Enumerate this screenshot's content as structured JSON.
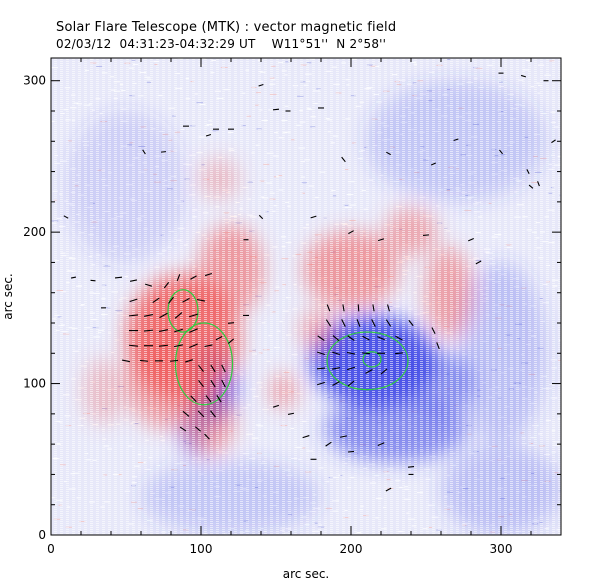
{
  "header": {
    "title": "Solar Flare Telescope (MTK) : vector magnetic field",
    "subtitle": "02/03/12  04:31:23-04:32:29 UT    W11°51''  N 2°58''"
  },
  "chart_data": {
    "type": "heatmap",
    "title": "Solar Flare Telescope (MTK) : vector magnetic field",
    "subtitle": "02/03/12  04:31:23-04:32:29 UT    W11°51''  N 2°58''",
    "xlabel": "arc sec.",
    "ylabel": "arc sec.",
    "xlim": [
      0,
      340
    ],
    "ylim": [
      0,
      315
    ],
    "x_ticks": [
      0,
      100,
      200,
      300
    ],
    "y_ticks": [
      0,
      100,
      200,
      300
    ],
    "colors": {
      "positive_polarity": "#f05a5a",
      "negative_polarity": "#3d46e6",
      "background": "#ffffff",
      "contour": "#2ecc40",
      "arrow": "#000000"
    },
    "positive_regions": [
      {
        "cx": 88,
        "cy": 130,
        "rx": 38,
        "ry": 42,
        "strength": 0.85
      },
      {
        "cx": 120,
        "cy": 175,
        "rx": 22,
        "ry": 30,
        "strength": 0.55
      },
      {
        "cx": 75,
        "cy": 100,
        "rx": 25,
        "ry": 30,
        "strength": 0.5
      },
      {
        "cx": 105,
        "cy": 75,
        "rx": 18,
        "ry": 22,
        "strength": 0.5
      },
      {
        "cx": 200,
        "cy": 175,
        "rx": 32,
        "ry": 26,
        "strength": 0.55
      },
      {
        "cx": 265,
        "cy": 160,
        "rx": 16,
        "ry": 30,
        "strength": 0.5
      },
      {
        "cx": 240,
        "cy": 200,
        "rx": 18,
        "ry": 16,
        "strength": 0.45
      },
      {
        "cx": 155,
        "cy": 95,
        "rx": 10,
        "ry": 12,
        "strength": 0.45
      },
      {
        "cx": 178,
        "cy": 135,
        "rx": 12,
        "ry": 14,
        "strength": 0.45
      },
      {
        "cx": 112,
        "cy": 235,
        "rx": 14,
        "ry": 14,
        "strength": 0.3
      },
      {
        "cx": 35,
        "cy": 95,
        "rx": 14,
        "ry": 22,
        "strength": 0.3
      }
    ],
    "negative_regions": [
      {
        "cx": 215,
        "cy": 115,
        "rx": 42,
        "ry": 30,
        "strength": 0.9
      },
      {
        "cx": 108,
        "cy": 100,
        "rx": 16,
        "ry": 26,
        "strength": 0.85
      },
      {
        "cx": 230,
        "cy": 70,
        "rx": 48,
        "ry": 22,
        "strength": 0.55
      },
      {
        "cx": 260,
        "cy": 100,
        "rx": 22,
        "ry": 20,
        "strength": 0.5
      },
      {
        "cx": 95,
        "cy": 68,
        "rx": 10,
        "ry": 16,
        "strength": 0.5
      },
      {
        "cx": 300,
        "cy": 120,
        "rx": 30,
        "ry": 60,
        "strength": 0.25
      },
      {
        "cx": 120,
        "cy": 25,
        "rx": 60,
        "ry": 25,
        "strength": 0.2
      },
      {
        "cx": 300,
        "cy": 30,
        "rx": 40,
        "ry": 30,
        "strength": 0.25
      },
      {
        "cx": 270,
        "cy": 260,
        "rx": 60,
        "ry": 40,
        "strength": 0.2
      },
      {
        "cx": 50,
        "cy": 230,
        "rx": 40,
        "ry": 50,
        "strength": 0.15
      }
    ],
    "contours": [
      {
        "cx": 88,
        "cy": 148,
        "rx": 10,
        "ry": 14
      },
      {
        "cx": 102,
        "cy": 113,
        "rx": 19,
        "ry": 27
      },
      {
        "cx": 211,
        "cy": 115,
        "rx": 27,
        "ry": 19
      },
      {
        "cx": 214,
        "cy": 116,
        "rx": 6,
        "ry": 5
      }
    ],
    "vectors": [
      [
        45,
        170,
        0.1,
        7
      ],
      [
        55,
        168,
        0.2,
        7
      ],
      [
        65,
        165,
        -0.3,
        7
      ],
      [
        77,
        165,
        0.9,
        7
      ],
      [
        85,
        170,
        1.2,
        7
      ],
      [
        95,
        170,
        0.5,
        7
      ],
      [
        105,
        172,
        0.3,
        7
      ],
      [
        55,
        155,
        0.3,
        8
      ],
      [
        70,
        155,
        0.6,
        8
      ],
      [
        80,
        155,
        0.9,
        8
      ],
      [
        90,
        155,
        0.5,
        8
      ],
      [
        100,
        155,
        -0.2,
        8
      ],
      [
        55,
        145,
        0.1,
        9
      ],
      [
        65,
        145,
        0.2,
        9
      ],
      [
        75,
        145,
        0.5,
        9
      ],
      [
        85,
        145,
        0.7,
        9
      ],
      [
        95,
        145,
        0.3,
        9
      ],
      [
        55,
        135,
        0.0,
        9
      ],
      [
        65,
        135,
        0.1,
        9
      ],
      [
        75,
        135,
        0.2,
        9
      ],
      [
        85,
        135,
        0.3,
        9
      ],
      [
        95,
        135,
        0.4,
        9
      ],
      [
        55,
        125,
        -0.1,
        9
      ],
      [
        65,
        125,
        0.0,
        9
      ],
      [
        75,
        125,
        0.1,
        9
      ],
      [
        85,
        125,
        0.2,
        9
      ],
      [
        95,
        125,
        0.4,
        9
      ],
      [
        50,
        115,
        -0.2,
        8
      ],
      [
        62,
        115,
        -0.1,
        8
      ],
      [
        72,
        115,
        0.0,
        8
      ],
      [
        82,
        115,
        0.1,
        8
      ],
      [
        92,
        115,
        0.3,
        8
      ],
      [
        105,
        125,
        0.2,
        8
      ],
      [
        112,
        130,
        0.5,
        7
      ],
      [
        120,
        128,
        0.7,
        7
      ],
      [
        100,
        110,
        -0.9,
        8
      ],
      [
        108,
        110,
        -1.0,
        8
      ],
      [
        115,
        110,
        -1.1,
        8
      ],
      [
        100,
        100,
        -0.9,
        8
      ],
      [
        108,
        100,
        -1.0,
        8
      ],
      [
        115,
        100,
        -1.1,
        8
      ],
      [
        95,
        90,
        -0.8,
        8
      ],
      [
        105,
        90,
        -0.9,
        8
      ],
      [
        112,
        90,
        -1.0,
        8
      ],
      [
        90,
        80,
        -0.7,
        8
      ],
      [
        100,
        80,
        -0.8,
        8
      ],
      [
        108,
        80,
        -0.9,
        8
      ],
      [
        88,
        70,
        -0.6,
        7
      ],
      [
        98,
        70,
        -0.7,
        7
      ],
      [
        104,
        65,
        -0.8,
        7
      ],
      [
        120,
        140,
        0.1,
        6
      ],
      [
        130,
        145,
        0.0,
        6
      ],
      [
        185,
        150,
        -1.2,
        7
      ],
      [
        195,
        150,
        -1.4,
        7
      ],
      [
        205,
        150,
        -1.5,
        7
      ],
      [
        215,
        150,
        -1.4,
        7
      ],
      [
        225,
        150,
        -1.3,
        7
      ],
      [
        185,
        140,
        -1.0,
        8
      ],
      [
        195,
        140,
        -1.1,
        8
      ],
      [
        205,
        140,
        -1.2,
        8
      ],
      [
        215,
        140,
        -1.1,
        8
      ],
      [
        225,
        140,
        -1.0,
        8
      ],
      [
        240,
        140,
        -0.9,
        7
      ],
      [
        180,
        130,
        -0.6,
        8
      ],
      [
        190,
        130,
        -0.7,
        8
      ],
      [
        200,
        130,
        -0.6,
        8
      ],
      [
        210,
        130,
        -0.5,
        8
      ],
      [
        220,
        130,
        -0.4,
        8
      ],
      [
        232,
        130,
        -0.5,
        8
      ],
      [
        180,
        120,
        -0.3,
        8
      ],
      [
        190,
        120,
        -0.3,
        8
      ],
      [
        200,
        120,
        -0.2,
        8
      ],
      [
        210,
        120,
        -0.1,
        8
      ],
      [
        220,
        120,
        0.0,
        8
      ],
      [
        232,
        120,
        0.1,
        8
      ],
      [
        180,
        110,
        0.1,
        8
      ],
      [
        190,
        110,
        0.2,
        8
      ],
      [
        200,
        110,
        0.3,
        8
      ],
      [
        212,
        108,
        0.5,
        8
      ],
      [
        222,
        108,
        0.7,
        8
      ],
      [
        180,
        100,
        0.3,
        8
      ],
      [
        190,
        100,
        0.5,
        8
      ],
      [
        200,
        100,
        0.7,
        8
      ],
      [
        255,
        135,
        -1.1,
        7
      ],
      [
        258,
        125,
        -1.2,
        7
      ],
      [
        170,
        65,
        0.3,
        7
      ],
      [
        185,
        60,
        0.6,
        7
      ],
      [
        195,
        65,
        0.2,
        7
      ],
      [
        220,
        60,
        0.4,
        7
      ],
      [
        240,
        45,
        0.1,
        6
      ],
      [
        225,
        30,
        0.5,
        6
      ],
      [
        160,
        80,
        0.2,
        6
      ],
      [
        150,
        85,
        0.3,
        6
      ],
      [
        175,
        50,
        0.0,
        6
      ],
      [
        200,
        55,
        0.1,
        6
      ],
      [
        130,
        195,
        0.0,
        5
      ],
      [
        140,
        210,
        -0.8,
        5
      ],
      [
        175,
        210,
        0.3,
        6
      ],
      [
        200,
        200,
        0.5,
        6
      ],
      [
        220,
        195,
        0.3,
        6
      ],
      [
        250,
        198,
        0.1,
        6
      ],
      [
        280,
        195,
        0.4,
        6
      ],
      [
        285,
        180,
        0.5,
        6
      ],
      [
        90,
        270,
        0.0,
        6
      ],
      [
        110,
        268,
        0.0,
        6
      ],
      [
        120,
        268,
        0.0,
        6
      ],
      [
        105,
        264,
        0.3,
        5
      ],
      [
        75,
        253,
        0.1,
        5
      ],
      [
        62,
        253,
        -1.0,
        5
      ],
      [
        150,
        281,
        0.1,
        6
      ],
      [
        180,
        282,
        0.0,
        6
      ],
      [
        195,
        248,
        -0.9,
        6
      ],
      [
        225,
        252,
        -0.5,
        5
      ],
      [
        270,
        261,
        0.3,
        5
      ],
      [
        300,
        253,
        -0.9,
        5
      ],
      [
        318,
        240,
        -1.1,
        5
      ],
      [
        320,
        230,
        -0.7,
        5
      ],
      [
        325,
        232,
        -1.2,
        5
      ],
      [
        300,
        305,
        0.0,
        5
      ],
      [
        315,
        303,
        -0.3,
        5
      ],
      [
        330,
        300,
        0.0,
        5
      ],
      [
        335,
        260,
        0.6,
        5
      ],
      [
        10,
        210,
        -0.5,
        5
      ],
      [
        15,
        170,
        0.2,
        5
      ],
      [
        28,
        168,
        -0.1,
        5
      ],
      [
        35,
        150,
        0.0,
        5
      ],
      [
        140,
        297,
        0.3,
        5
      ],
      [
        158,
        280,
        0.0,
        5
      ],
      [
        255,
        245,
        0.4,
        5
      ],
      [
        240,
        40,
        0.0,
        5
      ]
    ]
  }
}
